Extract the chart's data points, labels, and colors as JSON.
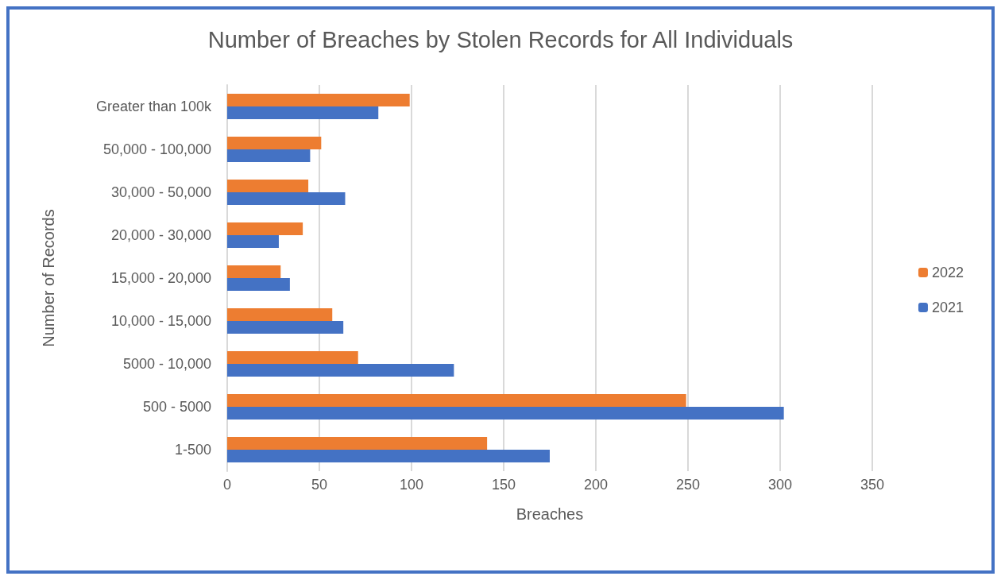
{
  "chart_data": {
    "type": "bar",
    "orientation": "horizontal",
    "title": "Number of Breaches by Stolen Records for All Individuals",
    "xlabel": "Breaches",
    "ylabel": "Number of Records",
    "categories": [
      "Greater than 100k",
      "50,000 - 100,000",
      "30,000 - 50,000",
      "20,000 - 30,000",
      "15,000 - 20,000",
      "10,000 - 15,000",
      "5000 - 10,000",
      "500 - 5000",
      "1-500"
    ],
    "series": [
      {
        "name": "2022",
        "color": "#ed7d31",
        "values": [
          99,
          51,
          44,
          41,
          29,
          57,
          71,
          249,
          141
        ]
      },
      {
        "name": "2021",
        "color": "#4472c4",
        "values": [
          82,
          45,
          64,
          28,
          34,
          63,
          123,
          302,
          175
        ]
      }
    ],
    "xlim": [
      0,
      350
    ],
    "xticks": [
      0,
      50,
      100,
      150,
      200,
      250,
      300,
      350
    ],
    "grid": "x",
    "legend": "right"
  }
}
